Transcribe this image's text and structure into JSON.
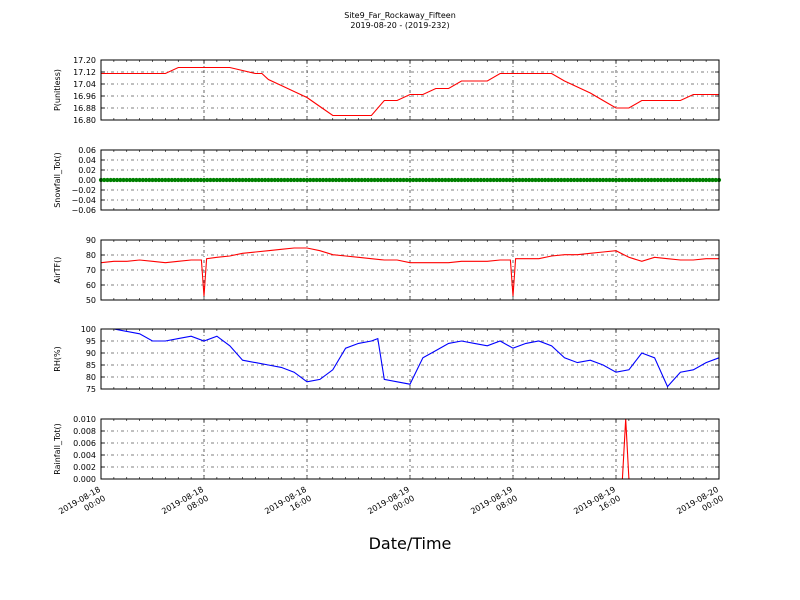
{
  "title": "Site9_Far_Rockaway_Fifteen",
  "subtitle": "2019-08-20 - (2019-232)",
  "xlabel": "Date/Time",
  "x_ticks": [
    {
      "l1": "2019-08-18",
      "l2": "00:00"
    },
    {
      "l1": "2019-08-18",
      "l2": "08:00"
    },
    {
      "l1": "2019-08-18",
      "l2": "16:00"
    },
    {
      "l1": "2019-08-19",
      "l2": "00:00"
    },
    {
      "l1": "2019-08-19",
      "l2": "08:00"
    },
    {
      "l1": "2019-08-19",
      "l2": "16:00"
    },
    {
      "l1": "2019-08-20",
      "l2": "00:00"
    }
  ],
  "chart_data": [
    {
      "type": "line",
      "ylabel": "P(unitless)",
      "ylim": [
        16.8,
        17.2
      ],
      "yticks": [
        "17.20",
        "17.12",
        "17.04",
        "16.96",
        "16.88",
        "16.80"
      ],
      "xlim": [
        "2019-08-18 00:00",
        "2019-08-20 00:00"
      ],
      "grid": true,
      "color": "#ff0000",
      "x_hours": [
        0,
        5,
        6,
        10,
        12,
        12.5,
        13,
        14,
        15,
        16,
        17,
        18,
        19,
        20,
        21,
        22,
        23,
        24,
        25,
        26,
        27,
        28,
        29,
        30,
        31,
        32,
        33,
        34,
        35,
        36,
        37,
        38,
        39,
        40,
        41,
        42,
        43,
        44,
        45,
        46,
        47,
        48
      ],
      "values": [
        17.11,
        17.11,
        17.15,
        17.15,
        17.11,
        17.11,
        17.07,
        17.03,
        16.99,
        16.95,
        16.89,
        16.83,
        16.83,
        16.83,
        16.83,
        16.93,
        16.93,
        16.97,
        16.97,
        17.01,
        17.01,
        17.06,
        17.06,
        17.06,
        17.11,
        17.11,
        17.11,
        17.11,
        17.11,
        17.06,
        17.02,
        16.98,
        16.93,
        16.88,
        16.88,
        16.93,
        16.93,
        16.93,
        16.93,
        16.97,
        16.97,
        16.97
      ]
    },
    {
      "type": "scatter",
      "ylabel": "Snowfall_Tot()",
      "ylim": [
        -0.06,
        0.06
      ],
      "yticks": [
        "0.06",
        "0.04",
        "0.02",
        "0.00",
        "−0.02",
        "−0.04",
        "−0.06"
      ],
      "xlim": [
        "2019-08-18 00:00",
        "2019-08-20 00:00"
      ],
      "grid": true,
      "color": "#008000",
      "note_values": "constant 0.00 at every sample",
      "x_hours_step": 0.25,
      "value": 0.0
    },
    {
      "type": "line",
      "ylabel": "AirTF()",
      "ylim": [
        45,
        90
      ],
      "yticks": [
        "90",
        "80",
        "70",
        "60",
        "50"
      ],
      "xlim": [
        "2019-08-18 00:00",
        "2019-08-20 00:00"
      ],
      "grid": true,
      "color": "#ff0000",
      "x_hours": [
        0,
        1,
        2,
        3,
        4,
        5,
        6,
        7,
        7.8,
        8.0,
        8.2,
        9,
        10,
        11,
        12,
        13,
        14,
        15,
        16,
        17,
        18,
        19,
        20,
        21,
        22,
        23,
        24,
        25,
        26,
        27,
        28,
        29,
        30,
        31,
        31.8,
        32.0,
        32.2,
        33,
        34,
        35,
        36,
        37,
        38,
        39,
        40,
        41,
        42,
        43,
        44,
        45,
        46,
        47,
        48
      ],
      "values": [
        73,
        74,
        74,
        75,
        74,
        73,
        74,
        75,
        75,
        48,
        76,
        77,
        78,
        80,
        81,
        82,
        83,
        84,
        84,
        82,
        79,
        78,
        77,
        76,
        75,
        75,
        73,
        73,
        73,
        73,
        74,
        74,
        74,
        75,
        75,
        48,
        76,
        76,
        76,
        78,
        79,
        79,
        80,
        81,
        82,
        77,
        74,
        77,
        76,
        75,
        75,
        76,
        76
      ]
    },
    {
      "type": "line",
      "ylabel": "RH(%)",
      "ylim": [
        75,
        100
      ],
      "yticks": [
        "100",
        "95",
        "90",
        "85",
        "80",
        "75"
      ],
      "xlim": [
        "2019-08-18 00:00",
        "2019-08-20 00:00"
      ],
      "grid": true,
      "color": "#0000ff",
      "x_hours": [
        0,
        1,
        2,
        3,
        4,
        5,
        6,
        7,
        8,
        9,
        10,
        11,
        12,
        13,
        14,
        15,
        16,
        17,
        18,
        19,
        20,
        21,
        21.5,
        22,
        23,
        24,
        25,
        26,
        27,
        28,
        29,
        30,
        31,
        32,
        33,
        34,
        35,
        36,
        37,
        38,
        39,
        40,
        41,
        42,
        43,
        44,
        45,
        46,
        47,
        48
      ],
      "values": [
        100,
        100,
        99,
        98,
        95,
        95,
        96,
        97,
        95,
        97,
        93,
        87,
        86,
        85,
        84,
        82,
        78,
        79,
        83,
        92,
        94,
        95,
        96,
        79,
        78,
        77,
        88,
        91,
        94,
        95,
        94,
        93,
        95,
        92,
        94,
        95,
        93,
        88,
        86,
        87,
        85,
        82,
        83,
        90,
        88,
        76,
        82,
        83,
        86,
        88
      ]
    },
    {
      "type": "line",
      "ylabel": "Rainfall_Tot()",
      "ylim": [
        0.0,
        0.01
      ],
      "yticks": [
        "0.010",
        "0.008",
        "0.006",
        "0.004",
        "0.002",
        "0.000"
      ],
      "xlim": [
        "2019-08-18 00:00",
        "2019-08-20 00:00"
      ],
      "grid": true,
      "color": "#ff0000",
      "x_hours": [
        0,
        40.5,
        40.75,
        41.0,
        48
      ],
      "values": [
        0.0,
        0.0,
        0.01,
        0.0,
        0.0
      ]
    }
  ]
}
